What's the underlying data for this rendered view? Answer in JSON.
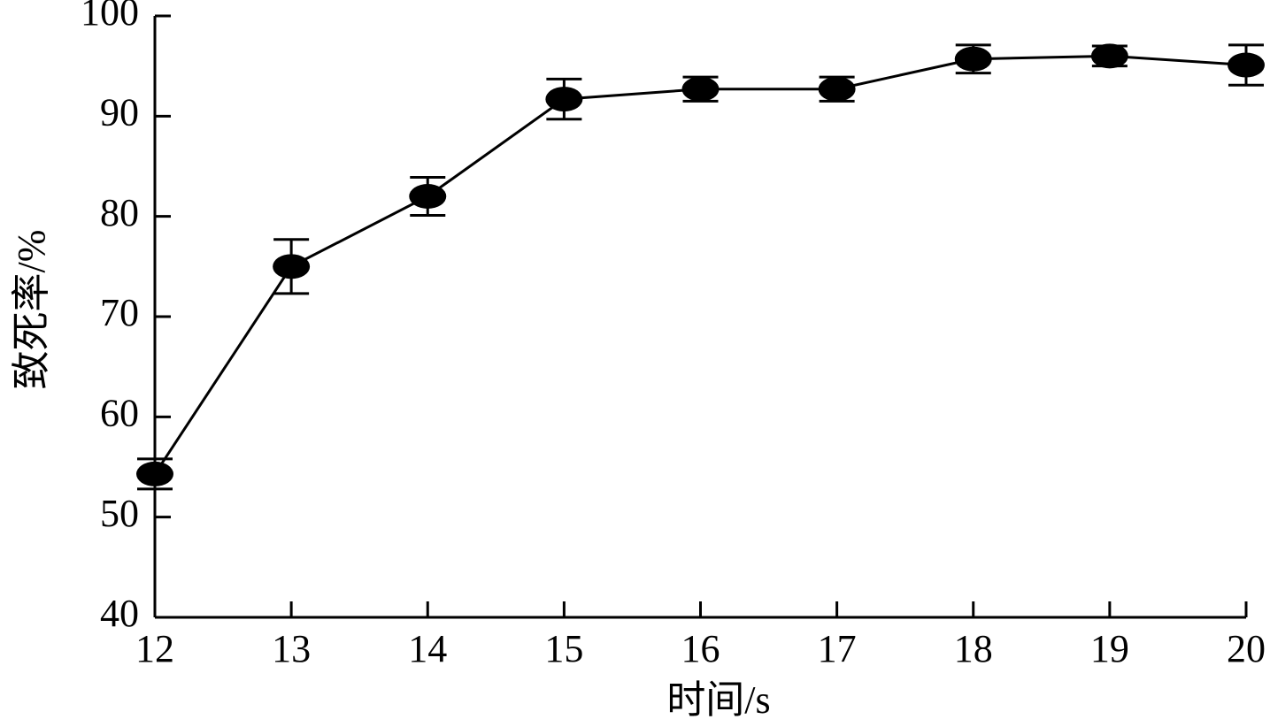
{
  "chart_data": {
    "type": "line",
    "xlabel": "时间/s",
    "ylabel": "致死率/%",
    "x": [
      12,
      13,
      14,
      15,
      16,
      17,
      18,
      19,
      20
    ],
    "series": [
      {
        "color": "#000000",
        "values": [
          54.3,
          75.0,
          82.0,
          91.7,
          92.7,
          92.7,
          95.7,
          96.0,
          95.1
        ],
        "errors": [
          1.5,
          2.7,
          1.9,
          2.0,
          1.2,
          1.2,
          1.4,
          1.0,
          2.0
        ]
      }
    ],
    "xlim": [
      12,
      20
    ],
    "xticks": [
      12,
      13,
      14,
      15,
      16,
      17,
      18,
      19,
      20
    ],
    "ylim": [
      40,
      100
    ],
    "yticks": [
      40,
      50,
      60,
      70,
      80,
      90,
      100
    ]
  }
}
